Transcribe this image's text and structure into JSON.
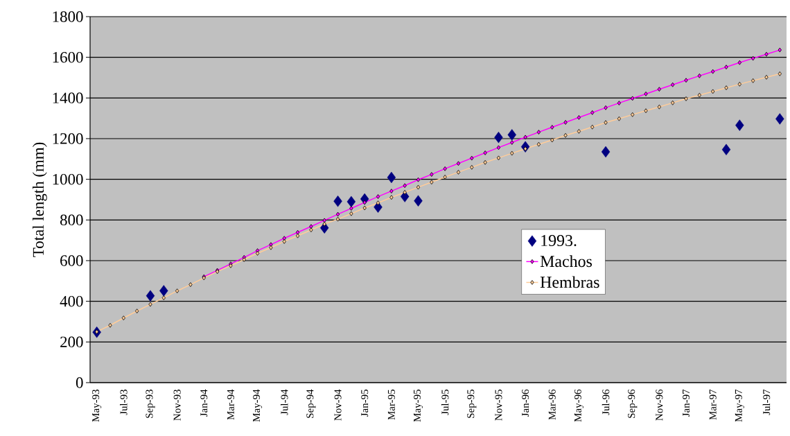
{
  "chart_data": {
    "type": "line",
    "ylabel": "Total length (mm)",
    "categories": [
      "May-93",
      null,
      "Jul-93",
      null,
      "Sep-93",
      null,
      "Nov-93",
      null,
      "Jan-94",
      null,
      "Mar-94",
      null,
      "May-94",
      null,
      "Jul-94",
      null,
      "Sep-94",
      null,
      "Nov-94",
      null,
      "Jan-95",
      null,
      "Mar-95",
      null,
      "May-95",
      null,
      "Jul-95",
      null,
      "Sep-95",
      null,
      "Nov-95",
      null,
      "Jan-96",
      null,
      "Mar-96",
      null,
      "May-96",
      null,
      "Jul-96",
      null,
      "Sep-96",
      null,
      "Nov-96",
      null,
      "Jan-97",
      null,
      "Mar-97",
      null,
      "May-97",
      null,
      "Jul-97",
      null
    ],
    "series": [
      {
        "name": "1993.",
        "type": "scatter",
        "color": "#000080",
        "values": [
          248,
          null,
          null,
          null,
          427,
          452,
          null,
          null,
          null,
          null,
          null,
          null,
          null,
          null,
          null,
          null,
          null,
          761,
          892,
          890,
          903,
          863,
          1009,
          915,
          894,
          null,
          null,
          null,
          null,
          null,
          1206,
          1219,
          1160,
          null,
          null,
          null,
          null,
          null,
          1135,
          null,
          null,
          null,
          null,
          null,
          null,
          null,
          null,
          1146,
          1266,
          null,
          null,
          1297
        ]
      },
      {
        "name": "Machos",
        "color": "#ff00ff",
        "values": [
          null,
          null,
          null,
          null,
          null,
          null,
          null,
          null,
          521,
          552,
          584,
          616,
          649,
          679,
          710,
          739,
          768,
          798,
          828,
          857,
          886,
          915,
          942,
          969,
          998,
          1024,
          1052,
          1078,
          1104,
          1130,
          1156,
          1181,
          1207,
          1232,
          1256,
          1280,
          1304,
          1328,
          1352,
          1375,
          1398,
          1420,
          1443,
          1465,
          1487,
          1509,
          1530,
          1552,
          1574,
          1595,
          1615,
          1636
        ]
      },
      {
        "name": "Hembras",
        "color": "#ffcc99",
        "values": [
          250,
          282,
          318,
          352,
          385,
          417,
          451,
          482,
          515,
          546,
          575,
          605,
          636,
          664,
          694,
          722,
          751,
          780,
          804,
          831,
          859,
          884,
          911,
          936,
          961,
          986,
          1011,
          1035,
          1059,
          1083,
          1105,
          1128,
          1150,
          1172,
          1193,
          1216,
          1236,
          1257,
          1279,
          1298,
          1318,
          1337,
          1356,
          1376,
          1396,
          1414,
          1432,
          1450,
          1468,
          1485,
          1502,
          1519
        ]
      }
    ],
    "ylim": [
      0,
      1800
    ],
    "yticks": [
      0,
      200,
      400,
      600,
      800,
      1000,
      1200,
      1400,
      1600,
      1800
    ],
    "grid": "y",
    "legend": "right",
    "marker": "diamond",
    "line_style": "solid"
  }
}
